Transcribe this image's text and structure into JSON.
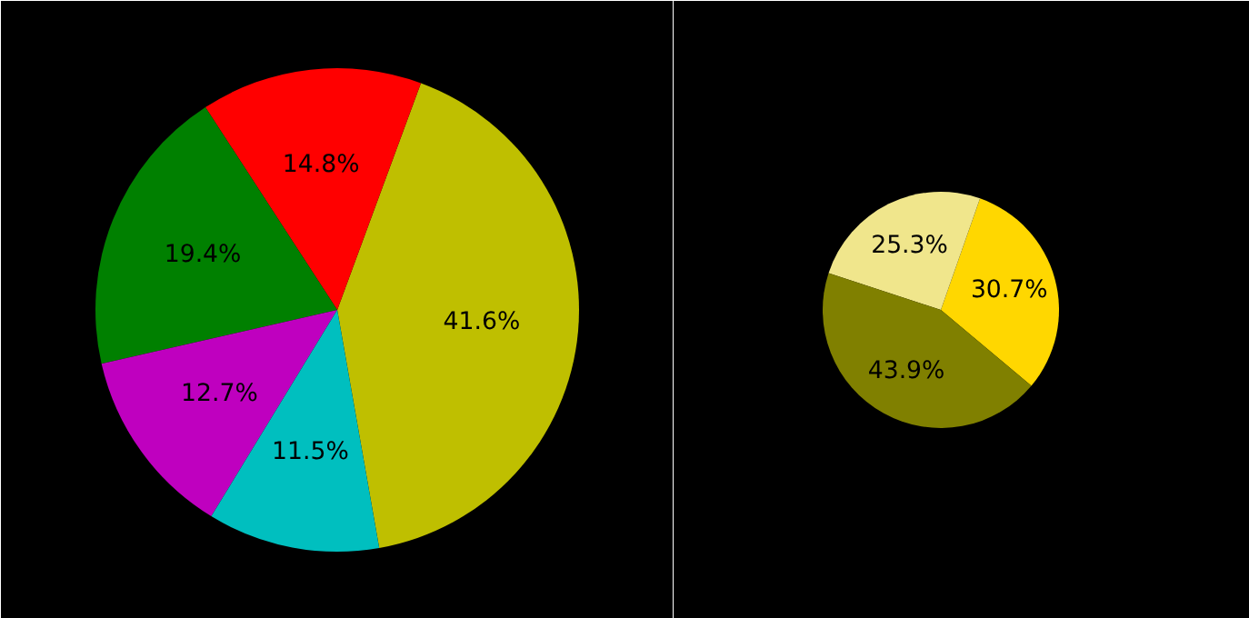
{
  "chart_data": [
    {
      "type": "pie",
      "categories": [
        null,
        null,
        null,
        null,
        null
      ],
      "values": [
        41.6,
        14.8,
        19.4,
        12.7,
        11.5
      ],
      "colors": [
        "#bfbf00",
        "#ff0000",
        "#008000",
        "#bf00bf",
        "#00bfbf"
      ],
      "value_labels": [
        "41.6%",
        "14.8%",
        "19.4%",
        "12.7%",
        "11.5%"
      ]
    },
    {
      "type": "pie",
      "categories": [
        null,
        null,
        null
      ],
      "values": [
        30.7,
        25.3,
        43.9
      ],
      "colors": [
        "#ffd700",
        "#f0e68c",
        "#808000"
      ],
      "value_labels": [
        "30.7%",
        "25.3%",
        "43.9%"
      ]
    }
  ]
}
